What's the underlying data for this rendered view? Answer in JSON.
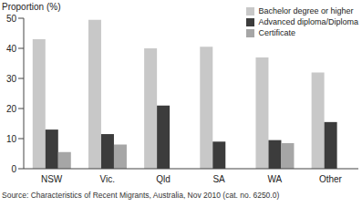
{
  "chart_data": {
    "type": "bar",
    "ylabel": "Proportion (%)",
    "categories": [
      "NSW",
      "Vic.",
      "Qld",
      "SA",
      "WA",
      "Other"
    ],
    "series": [
      {
        "name": "Bachelor degree or higher",
        "color": "#c8c8c8",
        "values": [
          43,
          49.5,
          40,
          40.5,
          37,
          32
        ]
      },
      {
        "name": "Advanced diploma/Diploma",
        "color": "#3c3c3c",
        "values": [
          13,
          11.5,
          21,
          9,
          9.5,
          15.5
        ]
      },
      {
        "name": "Certificate",
        "color": "#a6a6a6",
        "values": [
          5.5,
          8,
          null,
          null,
          8.5,
          null
        ]
      }
    ],
    "ylim": [
      0,
      50
    ],
    "yticks": [
      0,
      10,
      20,
      30,
      40,
      50
    ],
    "grid": false,
    "legend": "top-right",
    "annotations": [
      "Source: Characteristics of Recent Migrants, Australia, Nov 2010 (cat. no. 6250.0)"
    ]
  }
}
